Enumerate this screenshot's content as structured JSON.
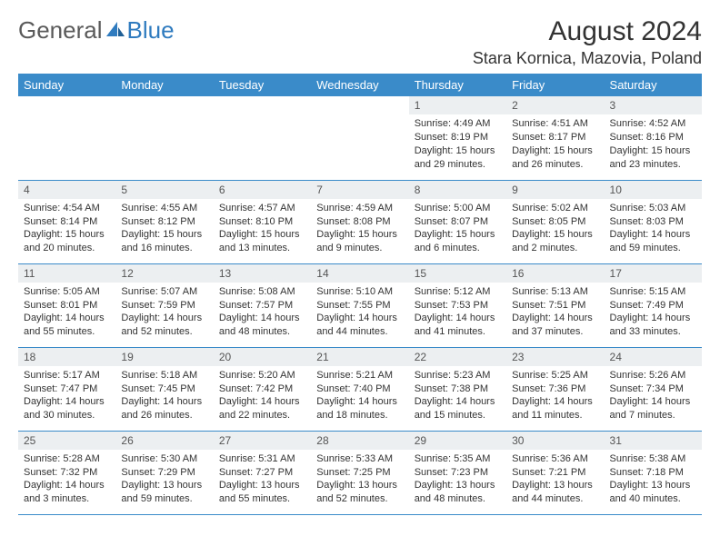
{
  "logo": {
    "general": "General",
    "blue": "Blue"
  },
  "title": "August 2024",
  "location": "Stara Kornica, Mazovia, Poland",
  "colors": {
    "header_bg": "#3a8bc9",
    "header_text": "#ffffff",
    "daynum_bg": "#eceff1",
    "border": "#3a8bc9",
    "logo_blue": "#2f7bbf",
    "logo_gray": "#5a5a5a",
    "text": "#333333"
  },
  "weekdays": [
    "Sunday",
    "Monday",
    "Tuesday",
    "Wednesday",
    "Thursday",
    "Friday",
    "Saturday"
  ],
  "font": {
    "header_size": 13,
    "cell_size": 11,
    "title_size": 30,
    "location_size": 18
  },
  "weeks": [
    [
      null,
      null,
      null,
      null,
      {
        "n": "1",
        "sr": "Sunrise: 4:49 AM",
        "ss": "Sunset: 8:19 PM",
        "d1": "Daylight: 15 hours",
        "d2": "and 29 minutes."
      },
      {
        "n": "2",
        "sr": "Sunrise: 4:51 AM",
        "ss": "Sunset: 8:17 PM",
        "d1": "Daylight: 15 hours",
        "d2": "and 26 minutes."
      },
      {
        "n": "3",
        "sr": "Sunrise: 4:52 AM",
        "ss": "Sunset: 8:16 PM",
        "d1": "Daylight: 15 hours",
        "d2": "and 23 minutes."
      }
    ],
    [
      {
        "n": "4",
        "sr": "Sunrise: 4:54 AM",
        "ss": "Sunset: 8:14 PM",
        "d1": "Daylight: 15 hours",
        "d2": "and 20 minutes."
      },
      {
        "n": "5",
        "sr": "Sunrise: 4:55 AM",
        "ss": "Sunset: 8:12 PM",
        "d1": "Daylight: 15 hours",
        "d2": "and 16 minutes."
      },
      {
        "n": "6",
        "sr": "Sunrise: 4:57 AM",
        "ss": "Sunset: 8:10 PM",
        "d1": "Daylight: 15 hours",
        "d2": "and 13 minutes."
      },
      {
        "n": "7",
        "sr": "Sunrise: 4:59 AM",
        "ss": "Sunset: 8:08 PM",
        "d1": "Daylight: 15 hours",
        "d2": "and 9 minutes."
      },
      {
        "n": "8",
        "sr": "Sunrise: 5:00 AM",
        "ss": "Sunset: 8:07 PM",
        "d1": "Daylight: 15 hours",
        "d2": "and 6 minutes."
      },
      {
        "n": "9",
        "sr": "Sunrise: 5:02 AM",
        "ss": "Sunset: 8:05 PM",
        "d1": "Daylight: 15 hours",
        "d2": "and 2 minutes."
      },
      {
        "n": "10",
        "sr": "Sunrise: 5:03 AM",
        "ss": "Sunset: 8:03 PM",
        "d1": "Daylight: 14 hours",
        "d2": "and 59 minutes."
      }
    ],
    [
      {
        "n": "11",
        "sr": "Sunrise: 5:05 AM",
        "ss": "Sunset: 8:01 PM",
        "d1": "Daylight: 14 hours",
        "d2": "and 55 minutes."
      },
      {
        "n": "12",
        "sr": "Sunrise: 5:07 AM",
        "ss": "Sunset: 7:59 PM",
        "d1": "Daylight: 14 hours",
        "d2": "and 52 minutes."
      },
      {
        "n": "13",
        "sr": "Sunrise: 5:08 AM",
        "ss": "Sunset: 7:57 PM",
        "d1": "Daylight: 14 hours",
        "d2": "and 48 minutes."
      },
      {
        "n": "14",
        "sr": "Sunrise: 5:10 AM",
        "ss": "Sunset: 7:55 PM",
        "d1": "Daylight: 14 hours",
        "d2": "and 44 minutes."
      },
      {
        "n": "15",
        "sr": "Sunrise: 5:12 AM",
        "ss": "Sunset: 7:53 PM",
        "d1": "Daylight: 14 hours",
        "d2": "and 41 minutes."
      },
      {
        "n": "16",
        "sr": "Sunrise: 5:13 AM",
        "ss": "Sunset: 7:51 PM",
        "d1": "Daylight: 14 hours",
        "d2": "and 37 minutes."
      },
      {
        "n": "17",
        "sr": "Sunrise: 5:15 AM",
        "ss": "Sunset: 7:49 PM",
        "d1": "Daylight: 14 hours",
        "d2": "and 33 minutes."
      }
    ],
    [
      {
        "n": "18",
        "sr": "Sunrise: 5:17 AM",
        "ss": "Sunset: 7:47 PM",
        "d1": "Daylight: 14 hours",
        "d2": "and 30 minutes."
      },
      {
        "n": "19",
        "sr": "Sunrise: 5:18 AM",
        "ss": "Sunset: 7:45 PM",
        "d1": "Daylight: 14 hours",
        "d2": "and 26 minutes."
      },
      {
        "n": "20",
        "sr": "Sunrise: 5:20 AM",
        "ss": "Sunset: 7:42 PM",
        "d1": "Daylight: 14 hours",
        "d2": "and 22 minutes."
      },
      {
        "n": "21",
        "sr": "Sunrise: 5:21 AM",
        "ss": "Sunset: 7:40 PM",
        "d1": "Daylight: 14 hours",
        "d2": "and 18 minutes."
      },
      {
        "n": "22",
        "sr": "Sunrise: 5:23 AM",
        "ss": "Sunset: 7:38 PM",
        "d1": "Daylight: 14 hours",
        "d2": "and 15 minutes."
      },
      {
        "n": "23",
        "sr": "Sunrise: 5:25 AM",
        "ss": "Sunset: 7:36 PM",
        "d1": "Daylight: 14 hours",
        "d2": "and 11 minutes."
      },
      {
        "n": "24",
        "sr": "Sunrise: 5:26 AM",
        "ss": "Sunset: 7:34 PM",
        "d1": "Daylight: 14 hours",
        "d2": "and 7 minutes."
      }
    ],
    [
      {
        "n": "25",
        "sr": "Sunrise: 5:28 AM",
        "ss": "Sunset: 7:32 PM",
        "d1": "Daylight: 14 hours",
        "d2": "and 3 minutes."
      },
      {
        "n": "26",
        "sr": "Sunrise: 5:30 AM",
        "ss": "Sunset: 7:29 PM",
        "d1": "Daylight: 13 hours",
        "d2": "and 59 minutes."
      },
      {
        "n": "27",
        "sr": "Sunrise: 5:31 AM",
        "ss": "Sunset: 7:27 PM",
        "d1": "Daylight: 13 hours",
        "d2": "and 55 minutes."
      },
      {
        "n": "28",
        "sr": "Sunrise: 5:33 AM",
        "ss": "Sunset: 7:25 PM",
        "d1": "Daylight: 13 hours",
        "d2": "and 52 minutes."
      },
      {
        "n": "29",
        "sr": "Sunrise: 5:35 AM",
        "ss": "Sunset: 7:23 PM",
        "d1": "Daylight: 13 hours",
        "d2": "and 48 minutes."
      },
      {
        "n": "30",
        "sr": "Sunrise: 5:36 AM",
        "ss": "Sunset: 7:21 PM",
        "d1": "Daylight: 13 hours",
        "d2": "and 44 minutes."
      },
      {
        "n": "31",
        "sr": "Sunrise: 5:38 AM",
        "ss": "Sunset: 7:18 PM",
        "d1": "Daylight: 13 hours",
        "d2": "and 40 minutes."
      }
    ]
  ]
}
